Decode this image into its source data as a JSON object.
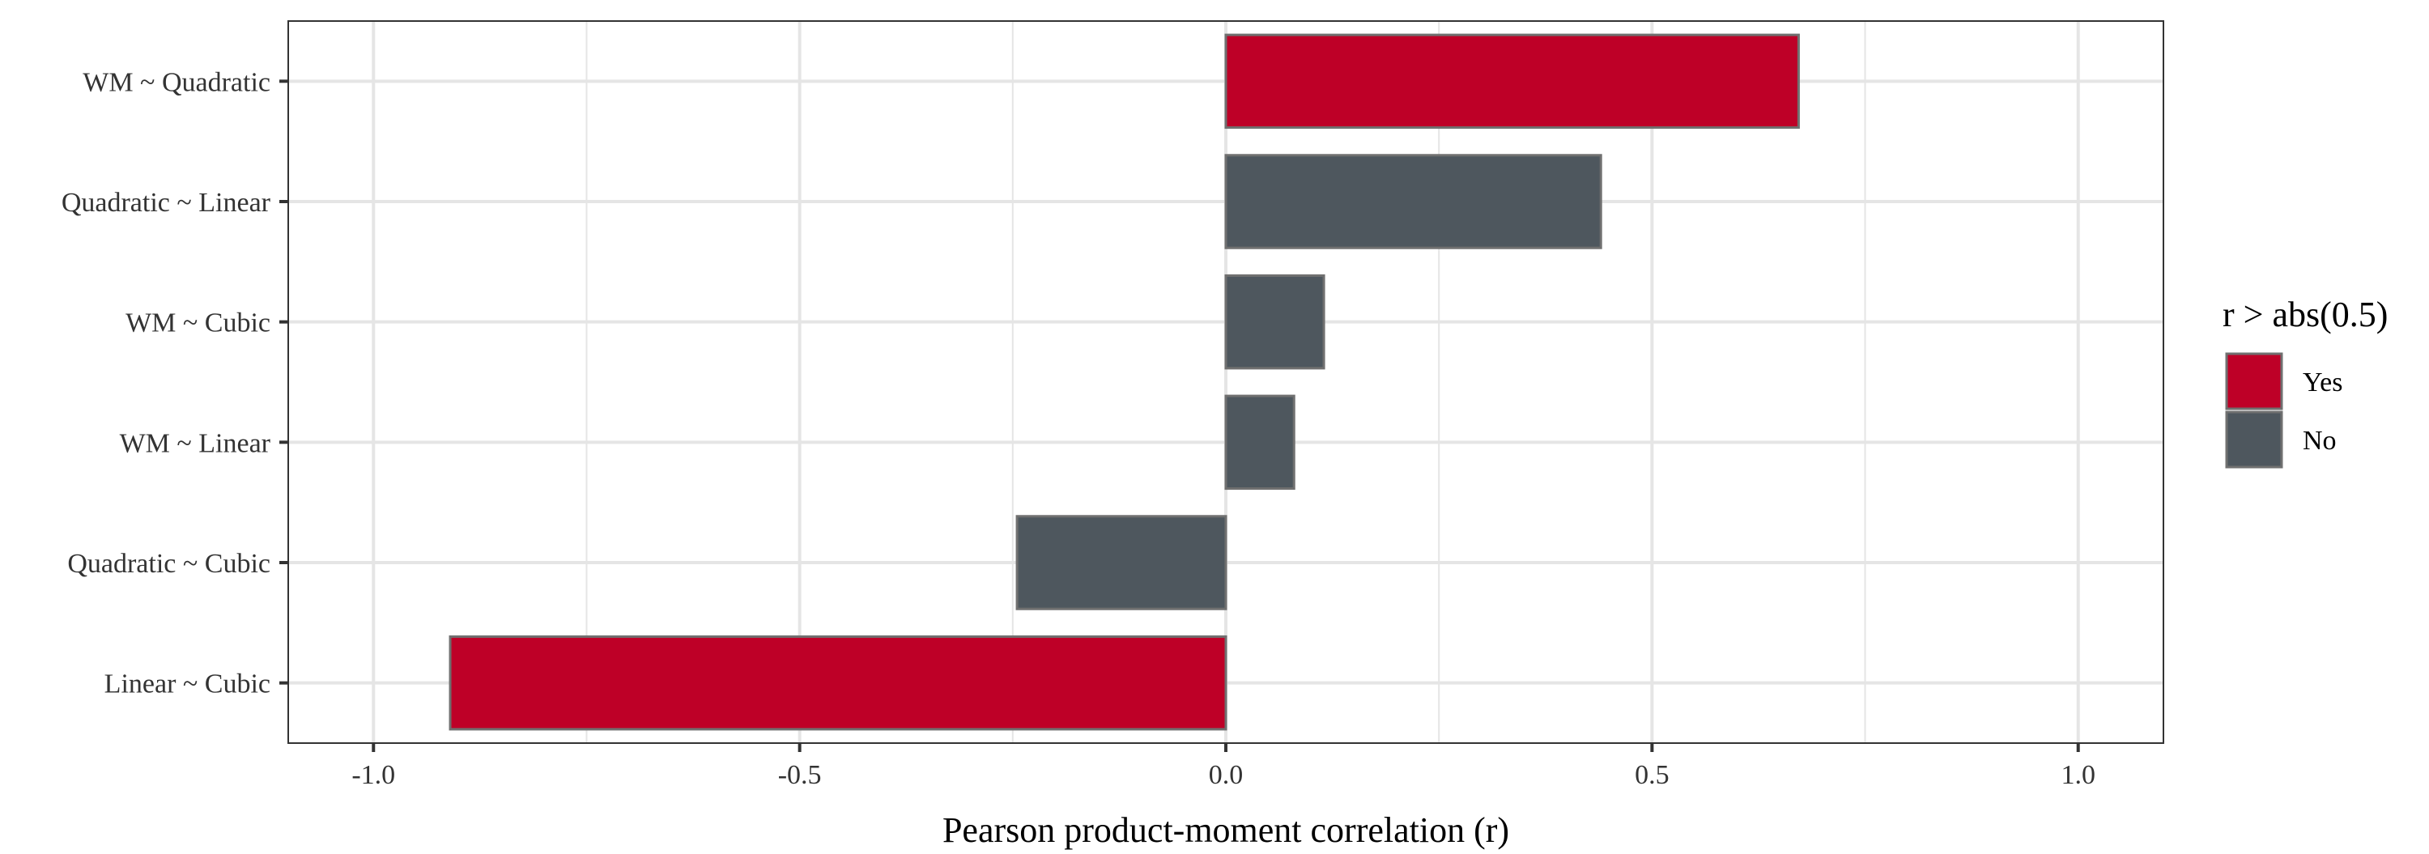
{
  "chart_data": {
    "type": "bar",
    "orientation": "horizontal",
    "categories": [
      "Linear ~ Cubic",
      "Quadratic ~ Cubic",
      "WM ~ Linear",
      "WM ~ Cubic",
      "Quadratic ~ Linear",
      "WM ~ Quadratic"
    ],
    "values": [
      -0.91,
      -0.245,
      0.08,
      0.115,
      0.44,
      0.672
    ],
    "groups": [
      "Yes",
      "No",
      "No",
      "No",
      "No",
      "Yes"
    ],
    "xlabel": "Pearson product-moment correlation (r)",
    "ylabel": "",
    "title": "",
    "xlim": [
      -1.1,
      1.1
    ],
    "xticks": [
      -1.0,
      -0.5,
      0.0,
      0.5,
      1.0
    ],
    "xtick_labels": [
      "-1.0",
      "-0.5",
      "0.0",
      "0.5",
      "1.0"
    ],
    "grid": true,
    "legend": {
      "title": "r > abs(0.5)",
      "position": "right",
      "entries": [
        {
          "label": "Yes",
          "color": "#BE0027"
        },
        {
          "label": "No",
          "color": "#4E575E"
        }
      ]
    },
    "colors": {
      "Yes": "#BE0027",
      "No": "#4E575E",
      "bar_outline": "#707070",
      "grid": "#E5E5E5",
      "panel_border": "#333333"
    }
  }
}
